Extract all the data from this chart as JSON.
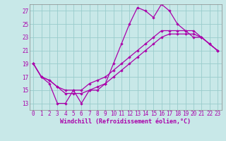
{
  "xlabel": "Windchill (Refroidissement éolien,°C)",
  "bg_color": "#c8e8e8",
  "line_color": "#aa00aa",
  "grid_color": "#99cccc",
  "x_ticks": [
    0,
    1,
    2,
    3,
    4,
    5,
    6,
    7,
    8,
    9,
    10,
    11,
    12,
    13,
    14,
    15,
    16,
    17,
    18,
    19,
    20,
    21,
    22,
    23
  ],
  "y_ticks": [
    13,
    15,
    17,
    19,
    21,
    23,
    25,
    27
  ],
  "xlim": [
    -0.5,
    23.5
  ],
  "ylim": [
    12.0,
    28.0
  ],
  "line1_x": [
    0,
    1,
    2,
    3,
    4,
    5,
    6,
    7,
    8,
    9,
    10,
    11,
    12,
    13,
    14,
    15,
    16,
    17,
    18,
    19,
    20,
    21,
    22,
    23
  ],
  "line1_y": [
    19,
    17,
    16,
    13,
    13,
    15,
    13,
    15,
    15,
    16,
    19,
    22,
    25,
    27.5,
    27,
    26,
    28,
    27,
    25,
    24,
    23,
    23,
    22,
    21
  ],
  "line2_x": [
    0,
    1,
    2,
    3,
    4,
    5,
    6,
    7,
    8,
    9,
    10,
    11,
    12,
    13,
    14,
    15,
    16,
    17,
    18,
    19,
    20,
    21,
    22,
    23
  ],
  "line2_y": [
    19,
    17,
    16.5,
    15.5,
    15,
    15,
    15,
    16,
    16.5,
    17,
    18,
    19,
    20,
    21,
    22,
    23,
    24,
    24,
    24,
    24,
    24,
    23,
    22,
    21
  ],
  "line3_x": [
    0,
    1,
    2,
    3,
    4,
    5,
    6,
    7,
    8,
    9,
    10,
    11,
    12,
    13,
    14,
    15,
    16,
    17,
    18,
    19,
    20,
    21,
    22,
    23
  ],
  "line3_y": [
    19,
    17,
    16.5,
    15.5,
    14.5,
    14.5,
    14.5,
    15,
    15.5,
    16,
    17,
    18,
    19,
    20,
    21,
    22,
    23,
    23.5,
    23.5,
    23.5,
    23.5,
    23,
    22,
    21
  ],
  "xlabel_fontsize": 6,
  "tick_fontsize": 5.5,
  "linewidth": 0.9,
  "markersize": 2.2
}
